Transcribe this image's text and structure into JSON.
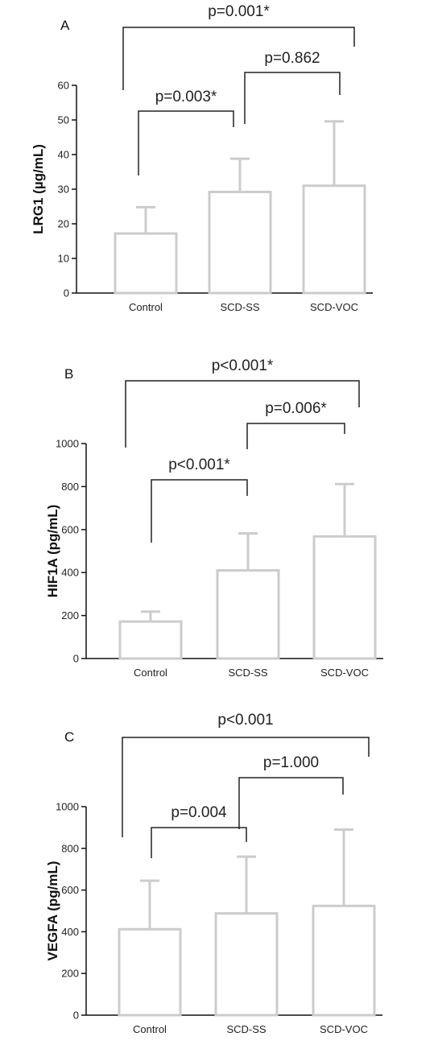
{
  "chart_data": [
    {
      "type": "bar",
      "panel": "A",
      "ylabel": "LRG1 (µg/mL)",
      "categories": [
        "Control",
        "SCD-SS",
        "SCD-VOC"
      ],
      "values": [
        17.2,
        29.2,
        31.0
      ],
      "error_upper": [
        24.8,
        38.8,
        49.6
      ],
      "ylim": [
        0,
        60
      ],
      "yticks": [
        "0",
        "10",
        "20",
        "30",
        "40",
        "50",
        "60"
      ],
      "comparisons": [
        {
          "from": 0,
          "to": 1,
          "label": "p=0.003*"
        },
        {
          "from": 1,
          "to": 2,
          "label": "p=0.862"
        },
        {
          "from": 0,
          "to": 2,
          "label": "p=0.001*"
        }
      ],
      "legend": "none",
      "grid": false
    },
    {
      "type": "bar",
      "panel": "B",
      "ylabel": "HIF1A (pg/mL)",
      "categories": [
        "Control",
        "SCD-SS",
        "SCD-VOC"
      ],
      "values": [
        172,
        410,
        568
      ],
      "error_upper": [
        218,
        582,
        812
      ],
      "ylim": [
        0,
        1000
      ],
      "yticks": [
        "0",
        "200",
        "400",
        "600",
        "800",
        "1000"
      ],
      "comparisons": [
        {
          "from": 0,
          "to": 1,
          "label": "p<0.001*"
        },
        {
          "from": 1,
          "to": 2,
          "label": "p=0.006*"
        },
        {
          "from": 0,
          "to": 2,
          "label": "p<0.001*"
        }
      ],
      "legend": "none",
      "grid": false
    },
    {
      "type": "bar",
      "panel": "C",
      "ylabel": "VEGFA (pg/mL)",
      "categories": [
        "Control",
        "SCD-SS",
        "SCD-VOC"
      ],
      "values": [
        412,
        488,
        524
      ],
      "error_upper": [
        645,
        760,
        890
      ],
      "ylim": [
        0,
        1000
      ],
      "yticks": [
        "0",
        "200",
        "400",
        "600",
        "800",
        "1000"
      ],
      "comparisons": [
        {
          "from": 0,
          "to": 1,
          "label": "p=0.004"
        },
        {
          "from": 1,
          "to": 2,
          "label": "p=1.000"
        },
        {
          "from": 0,
          "to": 2,
          "label": "p<0.001"
        }
      ],
      "legend": "none",
      "grid": false
    }
  ],
  "colors": {
    "bar_outline": "#cccccc",
    "axis": "#111111",
    "bracket": "#222222"
  }
}
